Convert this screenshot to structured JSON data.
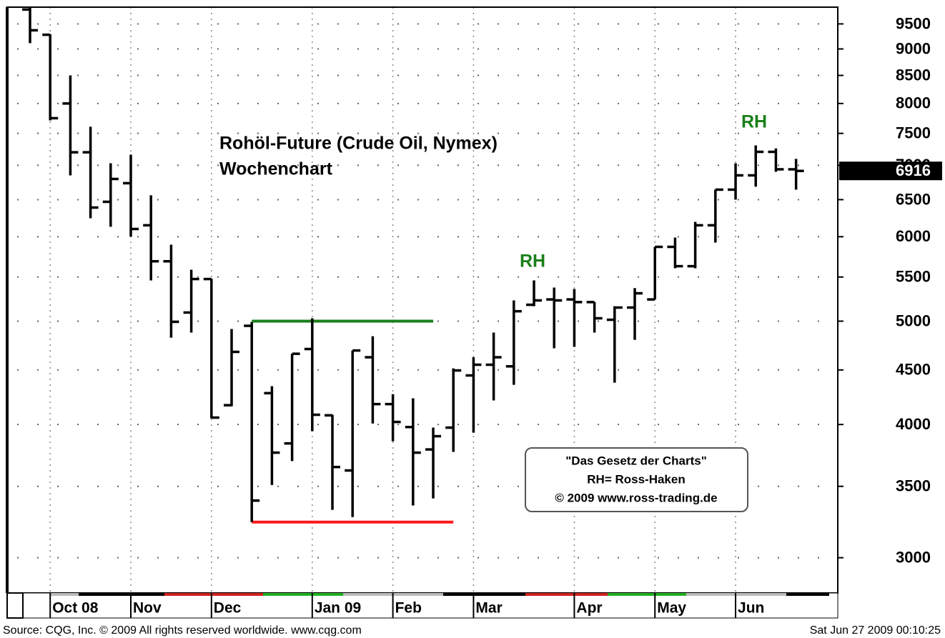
{
  "chart_data": {
    "type": "ohlc",
    "title": "Rohöl-Future (Crude Oil, Nymex)",
    "subtitle": "Wochenchart",
    "color": "#000000",
    "log_scale": true,
    "grid": true,
    "ylim": [
      2780,
      9850
    ],
    "yticks": [
      3000,
      3500,
      4000,
      4500,
      5000,
      5500,
      6000,
      6500,
      7000,
      7500,
      8000,
      8500,
      9000,
      9500
    ],
    "xlim": [
      -1.135,
      40.07
    ],
    "xticks": [
      {
        "value": 1,
        "label": "Oct 08"
      },
      {
        "value": 5,
        "label": "Nov"
      },
      {
        "value": 9,
        "label": "Dec"
      },
      {
        "value": 14,
        "label": "Jan 09"
      },
      {
        "value": 18,
        "label": "Feb"
      },
      {
        "value": 22,
        "label": "Mar"
      },
      {
        "value": 27,
        "label": "Apr"
      },
      {
        "value": 31,
        "label": "May"
      },
      {
        "value": 35,
        "label": "Jun"
      }
    ],
    "open": [
      9800,
      9280,
      8000,
      7200,
      6470,
      6735,
      6150,
      5690,
      5094,
      5476,
      4170,
      4950,
      4280,
      3840,
      4708,
      4080,
      3622,
      4625,
      4180,
      3978,
      3790,
      3973,
      4447,
      4551,
      4535,
      5180,
      5240,
      5240,
      5210,
      5015,
      5149,
      5240,
      5870,
      5630,
      6150,
      6642,
      6850,
      7207,
      6940
    ],
    "high": [
      9850,
      9290,
      8500,
      7608,
      7031,
      7163,
      6561,
      5897,
      5587,
      5480,
      4916,
      4990,
      4345,
      4660,
      5031,
      4085,
      4693,
      4840,
      4270,
      4233,
      3973,
      4515,
      4625,
      4878,
      5229,
      5460,
      5376,
      5360,
      5210,
      5164,
      5370,
      5870,
      5989,
      6196,
      6642,
      7031,
      7308,
      7260,
      7098
    ],
    "low": [
      9113,
      7713,
      6850,
      6244,
      6130,
      6000,
      5460,
      4825,
      4878,
      4053,
      4161,
      3240,
      3510,
      3696,
      3943,
      3327,
      3275,
      4009,
      3858,
      3358,
      3410,
      3770,
      3930,
      4213,
      4358,
      5164,
      4715,
      4730,
      4878,
      4378,
      4803,
      5240,
      5605,
      5605,
      5925,
      6500,
      6684,
      6903,
      6642
    ],
    "close": [
      9370,
      7750,
      7200,
      6390,
      6797,
      6101,
      5690,
      4993,
      5476,
      4060,
      4679,
      3394,
      3764,
      4660,
      4085,
      3649,
      4693,
      4180,
      4022,
      3764,
      3900,
      4495,
      4551,
      4625,
      5108,
      5229,
      5229,
      5210,
      5031,
      5149,
      5310,
      5870,
      5630,
      6150,
      6642,
      6850,
      7207,
      6940,
      6916
    ],
    "hlines": [
      {
        "value": 5000,
        "color": "#1a7f1a",
        "from": 11,
        "to": 20
      },
      {
        "value": 3240,
        "color": "#ff1a1a",
        "from": 11,
        "to": 21
      }
    ],
    "annotations": [
      "RH",
      "RH"
    ],
    "box_text": [
      "\"Das Gesetz der Charts\"",
      "RH= Ross-Haken",
      "© 2009 www.ross-trading.de"
    ],
    "source": "Source: CQG, Inc. © 2009 All rights reserved worldwide. www.cqg.com",
    "timestamp": "Sat Jun 27 2009 00:10:25"
  }
}
